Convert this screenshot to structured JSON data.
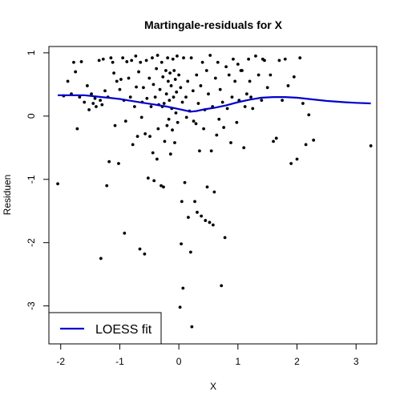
{
  "chart_data": {
    "type": "scatter",
    "title": "Martingale-residuals for X",
    "xlabel": "X",
    "ylabel": "Residuen",
    "xlim": [
      -2.2,
      3.35
    ],
    "ylim": [
      -3.6,
      1.1
    ],
    "xticks": [
      -2,
      -1,
      0,
      1,
      2,
      3
    ],
    "xtick_labels": [
      "-2",
      "-1",
      "0",
      "1",
      "2",
      "3"
    ],
    "yticks": [
      -3,
      -2,
      -1,
      0,
      1
    ],
    "ytick_labels": [
      "-3",
      "-2",
      "-1",
      "0",
      "1"
    ],
    "grid": false,
    "legend": {
      "position": "bottom-left",
      "entries": [
        {
          "label": "LOESS fit",
          "color": "#0000cd"
        }
      ]
    },
    "series": [
      {
        "type": "scatter",
        "color": "#000000",
        "points": [
          [
            -2.05,
            -1.07
          ],
          [
            -1.95,
            0.32
          ],
          [
            -1.88,
            0.55
          ],
          [
            -1.82,
            0.35
          ],
          [
            -1.78,
            0.85
          ],
          [
            -1.75,
            0.7
          ],
          [
            -1.72,
            -0.2
          ],
          [
            -1.68,
            0.3
          ],
          [
            -1.65,
            0.86
          ],
          [
            -1.6,
            0.22
          ],
          [
            -1.55,
            0.48
          ],
          [
            -1.52,
            0.1
          ],
          [
            -1.48,
            0.35
          ],
          [
            -1.45,
            0.2
          ],
          [
            -1.42,
            0.28
          ],
          [
            -1.4,
            0.15
          ],
          [
            -1.35,
            0.88
          ],
          [
            -1.33,
            0.25
          ],
          [
            -1.32,
            -2.25
          ],
          [
            -1.3,
            0.18
          ],
          [
            -1.28,
            0.9
          ],
          [
            -1.25,
            0.4
          ],
          [
            -1.22,
            -1.1
          ],
          [
            -1.2,
            0.3
          ],
          [
            -1.18,
            -0.72
          ],
          [
            -1.15,
            0.92
          ],
          [
            -1.12,
            0.85
          ],
          [
            -1.1,
            0.68
          ],
          [
            -1.08,
            -0.15
          ],
          [
            -1.05,
            0.55
          ],
          [
            -1.02,
            -0.75
          ],
          [
            -1.0,
            0.42
          ],
          [
            -0.98,
            0.58
          ],
          [
            -0.95,
            0.92
          ],
          [
            -0.93,
            0.25
          ],
          [
            -0.92,
            -1.85
          ],
          [
            -0.9,
            -0.08
          ],
          [
            -0.88,
            0.86
          ],
          [
            -0.85,
            0.6
          ],
          [
            -0.82,
            0.3
          ],
          [
            -0.8,
            0.88
          ],
          [
            -0.78,
            -0.45
          ],
          [
            -0.75,
            0.15
          ],
          [
            -0.73,
            0.95
          ],
          [
            -0.72,
            0.46
          ],
          [
            -0.7,
            -0.32
          ],
          [
            -0.68,
            0.7
          ],
          [
            -0.66,
            -2.1
          ],
          [
            -0.65,
            0.85
          ],
          [
            -0.63,
            -0.02
          ],
          [
            -0.62,
            0.22
          ],
          [
            -0.6,
            0.45
          ],
          [
            -0.58,
            -2.18
          ],
          [
            -0.57,
            -0.28
          ],
          [
            -0.55,
            0.88
          ],
          [
            -0.54,
            0.28
          ],
          [
            -0.52,
            -0.98
          ],
          [
            -0.5,
            0.6
          ],
          [
            -0.49,
            -0.32
          ],
          [
            -0.47,
            0.15
          ],
          [
            -0.45,
            0.92
          ],
          [
            -0.44,
            -0.58
          ],
          [
            -0.43,
            0.5
          ],
          [
            -0.42,
            -1.02
          ],
          [
            -0.4,
            0.3
          ],
          [
            -0.38,
            0.75
          ],
          [
            -0.37,
            -0.68
          ],
          [
            -0.36,
            0.96
          ],
          [
            -0.35,
            -0.2
          ],
          [
            -0.34,
            0.18
          ],
          [
            -0.33,
            -3.55
          ],
          [
            -0.32,
            0.42
          ],
          [
            -0.3,
            -1.1
          ],
          [
            -0.29,
            0.85
          ],
          [
            -0.28,
            0.15
          ],
          [
            -0.27,
            0.62
          ],
          [
            -0.26,
            -1.12
          ],
          [
            -0.25,
            0.2
          ],
          [
            -0.24,
            -0.4
          ],
          [
            -0.22,
            0.72
          ],
          [
            -0.21,
            0.35
          ],
          [
            -0.2,
            -0.15
          ],
          [
            -0.19,
            0.92
          ],
          [
            -0.18,
            0.55
          ],
          [
            -0.17,
            -0.05
          ],
          [
            -0.16,
            0.25
          ],
          [
            -0.15,
            0.68
          ],
          [
            -0.14,
            -0.6
          ],
          [
            -0.13,
            0.48
          ],
          [
            -0.12,
            0.12
          ],
          [
            -0.11,
            -0.22
          ],
          [
            -0.1,
            0.9
          ],
          [
            -0.09,
            0.3
          ],
          [
            -0.08,
            0.72
          ],
          [
            -0.07,
            -0.42
          ],
          [
            -0.06,
            0.58
          ],
          [
            -0.05,
            0.05
          ],
          [
            -0.04,
            0.38
          ],
          [
            -0.03,
            0.95
          ],
          [
            -0.02,
            -0.1
          ],
          [
            0.0,
            0.65
          ],
          [
            0.02,
            -3.02
          ],
          [
            0.03,
            0.45
          ],
          [
            0.04,
            -2.02
          ],
          [
            0.05,
            -1.35
          ],
          [
            0.06,
            0.22
          ],
          [
            0.07,
            -2.72
          ],
          [
            0.08,
            0.92
          ],
          [
            0.1,
            -1.05
          ],
          [
            0.12,
            0.3
          ],
          [
            0.13,
            -0.02
          ],
          [
            0.15,
            0.55
          ],
          [
            0.16,
            -1.6
          ],
          [
            0.18,
            0.08
          ],
          [
            0.2,
            -2.15
          ],
          [
            0.21,
            0.92
          ],
          [
            0.22,
            -3.33
          ],
          [
            0.24,
            0.4
          ],
          [
            0.25,
            -0.08
          ],
          [
            0.27,
            -1.35
          ],
          [
            0.29,
            -0.12
          ],
          [
            0.3,
            0.65
          ],
          [
            0.31,
            -1.52
          ],
          [
            0.33,
            0.2
          ],
          [
            0.35,
            -0.55
          ],
          [
            0.37,
            0.48
          ],
          [
            0.38,
            -1.58
          ],
          [
            0.4,
            0.85
          ],
          [
            0.42,
            -0.2
          ],
          [
            0.44,
            0.1
          ],
          [
            0.45,
            -1.65
          ],
          [
            0.47,
            0.72
          ],
          [
            0.48,
            -1.12
          ],
          [
            0.5,
            0.35
          ],
          [
            0.52,
            -1.68
          ],
          [
            0.53,
            0.96
          ],
          [
            0.55,
            -0.55
          ],
          [
            0.57,
            0.15
          ],
          [
            0.58,
            -1.72
          ],
          [
            0.6,
            -1.2
          ],
          [
            0.62,
            0.6
          ],
          [
            0.64,
            -0.3
          ],
          [
            0.66,
            0.85
          ],
          [
            0.68,
            -0.05
          ],
          [
            0.7,
            0.42
          ],
          [
            0.72,
            -2.68
          ],
          [
            0.74,
            0.22
          ],
          [
            0.76,
            -0.18
          ],
          [
            0.78,
            -1.92
          ],
          [
            0.8,
            0.78
          ],
          [
            0.82,
            0.12
          ],
          [
            0.85,
            0.65
          ],
          [
            0.88,
            -0.42
          ],
          [
            0.9,
            0.3
          ],
          [
            0.92,
            0.9
          ],
          [
            0.95,
            0.55
          ],
          [
            0.98,
            -0.1
          ],
          [
            1.0,
            0.82
          ],
          [
            1.02,
            0.25
          ],
          [
            1.05,
            0.72
          ],
          [
            1.07,
            0.72
          ],
          [
            1.1,
            -0.5
          ],
          [
            1.12,
            0.15
          ],
          [
            1.15,
            0.35
          ],
          [
            1.18,
            0.9
          ],
          [
            1.2,
            0.55
          ],
          [
            1.22,
            0.3
          ],
          [
            1.25,
            0.12
          ],
          [
            1.3,
            0.95
          ],
          [
            1.35,
            0.65
          ],
          [
            1.4,
            0.25
          ],
          [
            1.42,
            0.9
          ],
          [
            1.45,
            0.88
          ],
          [
            1.5,
            0.45
          ],
          [
            1.55,
            0.65
          ],
          [
            1.6,
            -0.4
          ],
          [
            1.65,
            -0.35
          ],
          [
            1.7,
            0.88
          ],
          [
            1.75,
            0.25
          ],
          [
            1.8,
            0.9
          ],
          [
            1.85,
            0.48
          ],
          [
            1.9,
            -0.75
          ],
          [
            1.95,
            0.62
          ],
          [
            2.0,
            -0.68
          ],
          [
            2.05,
            0.92
          ],
          [
            2.1,
            0.2
          ],
          [
            2.15,
            -0.45
          ],
          [
            2.2,
            0.02
          ],
          [
            2.28,
            -0.38
          ],
          [
            3.25,
            -0.47
          ]
        ]
      },
      {
        "name": "LOESS fit",
        "type": "line",
        "color": "#0000cd",
        "points": [
          [
            -2.05,
            0.33
          ],
          [
            -1.8,
            0.33
          ],
          [
            -1.6,
            0.33
          ],
          [
            -1.4,
            0.31
          ],
          [
            -1.2,
            0.29
          ],
          [
            -1.0,
            0.27
          ],
          [
            -0.8,
            0.24
          ],
          [
            -0.6,
            0.21
          ],
          [
            -0.4,
            0.18
          ],
          [
            -0.2,
            0.15
          ],
          [
            0.0,
            0.11
          ],
          [
            0.1,
            0.09
          ],
          [
            0.2,
            0.07
          ],
          [
            0.3,
            0.08
          ],
          [
            0.45,
            0.11
          ],
          [
            0.6,
            0.13
          ],
          [
            0.8,
            0.17
          ],
          [
            1.0,
            0.22
          ],
          [
            1.2,
            0.26
          ],
          [
            1.4,
            0.29
          ],
          [
            1.6,
            0.3
          ],
          [
            1.8,
            0.3
          ],
          [
            2.0,
            0.29
          ],
          [
            2.2,
            0.27
          ],
          [
            2.5,
            0.24
          ],
          [
            2.8,
            0.22
          ],
          [
            3.0,
            0.21
          ],
          [
            3.25,
            0.2
          ]
        ]
      }
    ]
  }
}
